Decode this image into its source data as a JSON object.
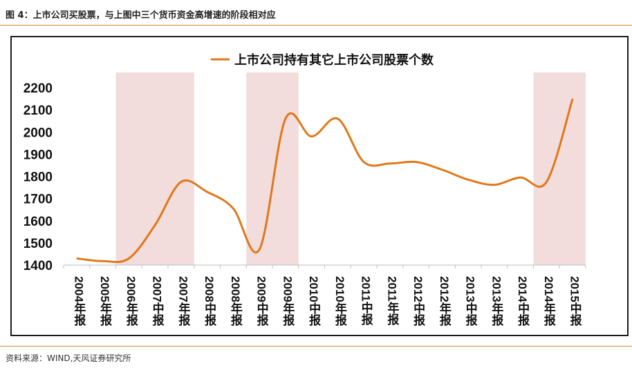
{
  "figure_title": "图 4：上市公司买股票，与上图中三个货币资金高增速的阶段相对应",
  "source_note": "资料来源：WIND,天风证券研究所",
  "colors": {
    "line": "#e07819",
    "shade": "#f2dcdc",
    "rule": "#d08a3a",
    "text": "#111111"
  },
  "chart_data": {
    "type": "line",
    "title": "",
    "legend": {
      "position": "top-center",
      "label": "上市公司持有其它上市公司股票个数"
    },
    "categories": [
      "2004年报",
      "2005年报",
      "2006年报",
      "2007中报",
      "2007年报",
      "2008中报",
      "2008年报",
      "2009中报",
      "2009年报",
      "2010中报",
      "2010年报",
      "2011中报",
      "2011年报",
      "2012中报",
      "2012年报",
      "2013中报",
      "2013年报",
      "2014中报",
      "2014年报",
      "2015中报"
    ],
    "series": [
      {
        "name": "上市公司持有其它上市公司股票个数",
        "values": [
          1430,
          1418,
          1430,
          1580,
          1775,
          1730,
          1655,
          1470,
          2060,
          1980,
          2060,
          1865,
          1858,
          1865,
          1830,
          1785,
          1762,
          1795,
          1775,
          2150
        ]
      }
    ],
    "ylim": [
      1400,
      2200
    ],
    "yticks": [
      1400,
      1500,
      1600,
      1700,
      1800,
      1900,
      2000,
      2100,
      2200
    ],
    "shaded_ranges": [
      {
        "from": "2006年报",
        "to": "2007年报"
      },
      {
        "from": "2009中报",
        "to": "2009年报"
      },
      {
        "from": "2014年报",
        "to": "2015中报"
      }
    ],
    "grid": false,
    "xlabel": "",
    "ylabel": ""
  }
}
